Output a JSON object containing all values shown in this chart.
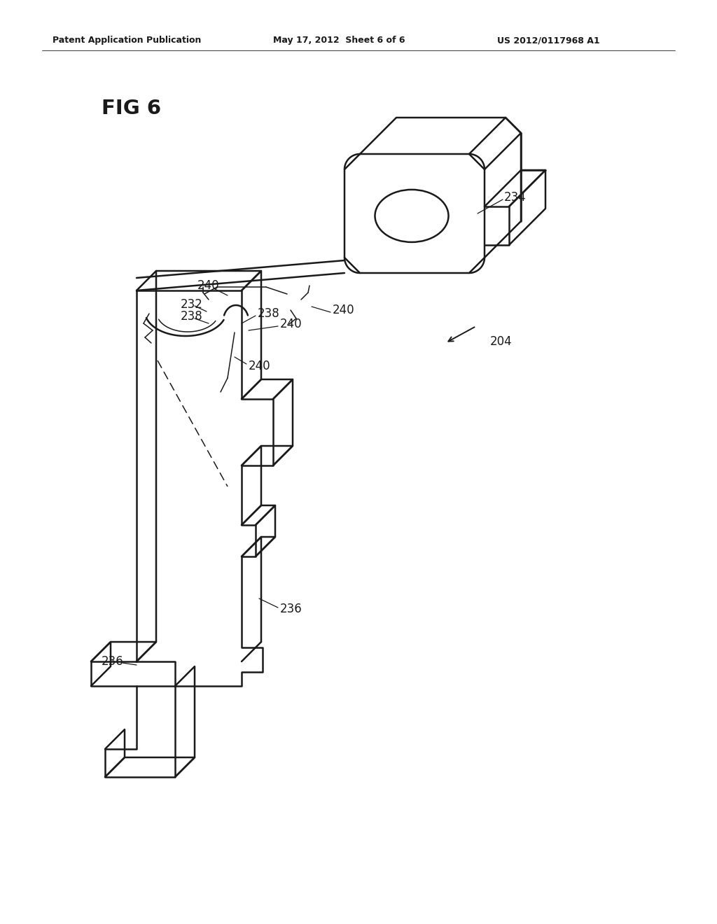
{
  "bg": "#ffffff",
  "lc": "#1a1a1a",
  "header_left": "Patent Application Publication",
  "header_center": "May 17, 2012  Sheet 6 of 6",
  "header_right": "US 2012/0117968 A1",
  "fig_label": "FIG 6"
}
